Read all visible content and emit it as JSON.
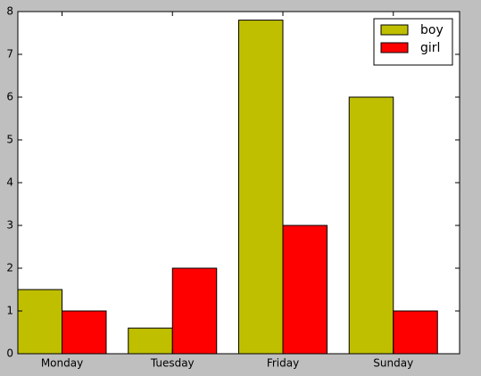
{
  "chart_data": {
    "type": "bar",
    "categories": [
      "Monday",
      "Tuesday",
      "Friday",
      "Sunday"
    ],
    "series": [
      {
        "name": "boy",
        "color": "#bfbf00",
        "values": [
          1.5,
          0.6,
          7.8,
          6
        ]
      },
      {
        "name": "girl",
        "color": "#ff0000",
        "values": [
          1,
          2,
          3,
          1
        ]
      }
    ],
    "ylim": [
      0,
      8
    ],
    "yticks": [
      0,
      1,
      2,
      3,
      4,
      5,
      6,
      7,
      8
    ],
    "legend": "upper right"
  }
}
